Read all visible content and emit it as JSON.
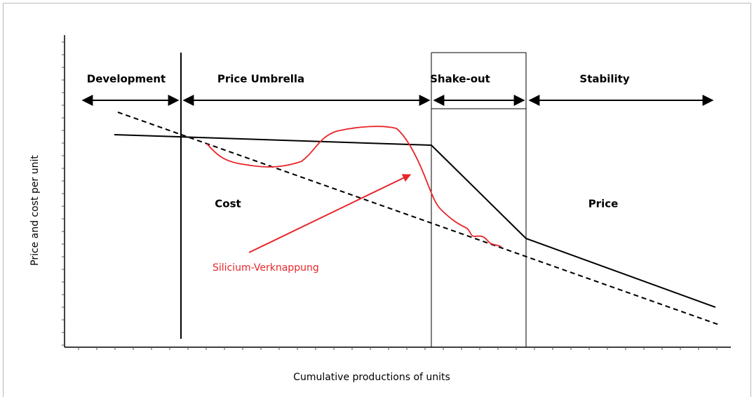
{
  "phases": [
    "Development",
    "Price Umbrella",
    "Shake-out",
    "Stability"
  ],
  "curve_labels": {
    "cost": "Cost",
    "price": "Price"
  },
  "annotation": "Silicium-Verknappung",
  "axes": {
    "x_label": "Cumulative productions of units",
    "y_label": "Price and cost per unit"
  }
}
